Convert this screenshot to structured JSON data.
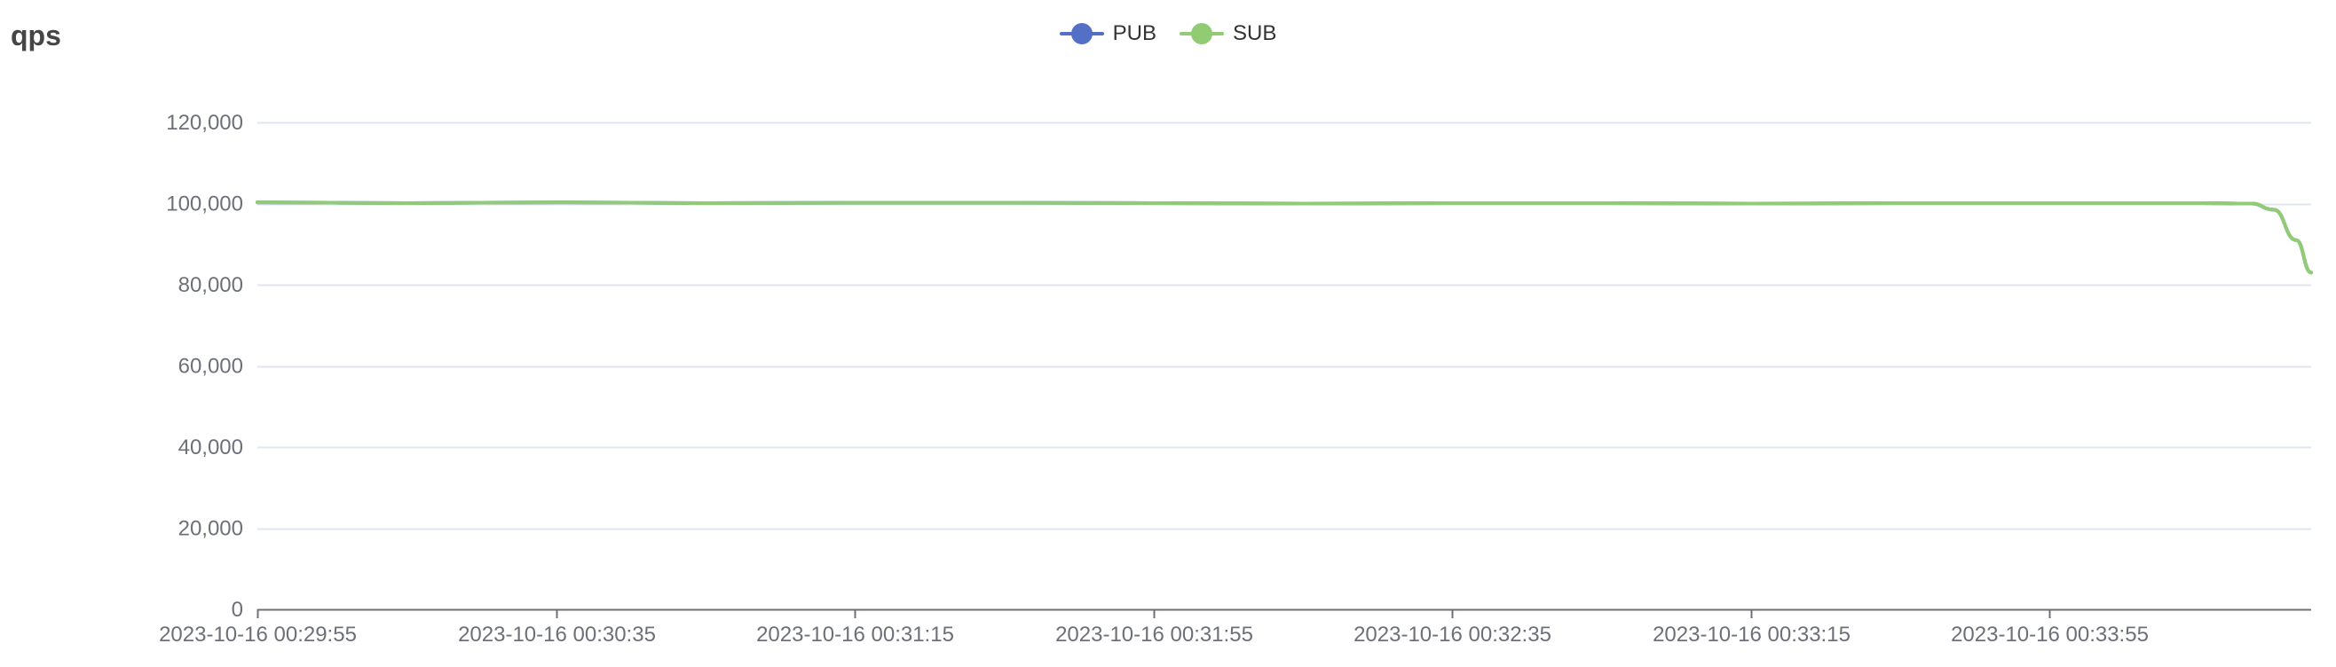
{
  "chart_data": {
    "type": "line",
    "title": "qps",
    "legend_position": "top-center",
    "grid": true,
    "ylim": [
      0,
      120000
    ],
    "y_ticks": [
      0,
      20000,
      40000,
      60000,
      80000,
      100000,
      120000
    ],
    "y_tick_labels": [
      "0",
      "20,000",
      "40,000",
      "60,000",
      "80,000",
      "100,000",
      "120,000"
    ],
    "x_range": [
      "2023-10-16 00:29:55",
      "2023-10-16 00:34:30"
    ],
    "x_tick_labels": [
      "2023-10-16 00:29:55",
      "2023-10-16 00:30:35",
      "2023-10-16 00:31:15",
      "2023-10-16 00:31:55",
      "2023-10-16 00:32:35",
      "2023-10-16 00:33:15",
      "2023-10-16 00:33:55"
    ],
    "series": [
      {
        "name": "PUB",
        "color": "#5470c6",
        "points": [
          [
            "2023-10-16 00:29:55",
            100300
          ],
          [
            "2023-10-16 00:30:15",
            100100
          ],
          [
            "2023-10-16 00:30:35",
            100300
          ],
          [
            "2023-10-16 00:30:55",
            100100
          ],
          [
            "2023-10-16 00:31:15",
            100200
          ],
          [
            "2023-10-16 00:31:35",
            100200
          ],
          [
            "2023-10-16 00:31:55",
            100100
          ],
          [
            "2023-10-16 00:32:15",
            100000
          ],
          [
            "2023-10-16 00:32:35",
            100100
          ],
          [
            "2023-10-16 00:32:55",
            100100
          ],
          [
            "2023-10-16 00:33:15",
            100000
          ],
          [
            "2023-10-16 00:33:35",
            100100
          ],
          [
            "2023-10-16 00:33:55",
            100100
          ],
          [
            "2023-10-16 00:34:15",
            100100
          ],
          [
            "2023-10-16 00:34:22",
            100000
          ],
          [
            "2023-10-16 00:34:25",
            98500
          ],
          [
            "2023-10-16 00:34:28",
            91000
          ],
          [
            "2023-10-16 00:34:30",
            83000
          ]
        ]
      },
      {
        "name": "SUB",
        "color": "#91cc75",
        "points": [
          [
            "2023-10-16 00:29:55",
            100300
          ],
          [
            "2023-10-16 00:30:15",
            100100
          ],
          [
            "2023-10-16 00:30:35",
            100300
          ],
          [
            "2023-10-16 00:30:55",
            100100
          ],
          [
            "2023-10-16 00:31:15",
            100200
          ],
          [
            "2023-10-16 00:31:35",
            100200
          ],
          [
            "2023-10-16 00:31:55",
            100100
          ],
          [
            "2023-10-16 00:32:15",
            100000
          ],
          [
            "2023-10-16 00:32:35",
            100100
          ],
          [
            "2023-10-16 00:32:55",
            100100
          ],
          [
            "2023-10-16 00:33:15",
            100000
          ],
          [
            "2023-10-16 00:33:35",
            100100
          ],
          [
            "2023-10-16 00:33:55",
            100100
          ],
          [
            "2023-10-16 00:34:15",
            100100
          ],
          [
            "2023-10-16 00:34:22",
            100000
          ],
          [
            "2023-10-16 00:34:25",
            98500
          ],
          [
            "2023-10-16 00:34:28",
            91000
          ],
          [
            "2023-10-16 00:34:30",
            83000
          ]
        ]
      }
    ]
  }
}
